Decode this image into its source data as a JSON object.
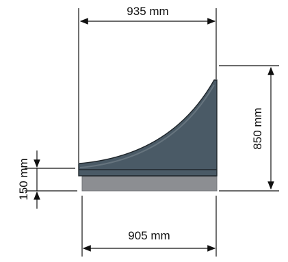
{
  "dimensions": {
    "top_width": "935 mm",
    "bottom_width": "905 mm",
    "overall_height": "850 mm",
    "base_height": "150 mm"
  },
  "colors": {
    "ramp_fill": "#4a5a66",
    "ramp_edge": "#1f262b",
    "ramp_highlight": "#66747e",
    "base_fill": "#8c8e92",
    "line": "#111111"
  }
}
